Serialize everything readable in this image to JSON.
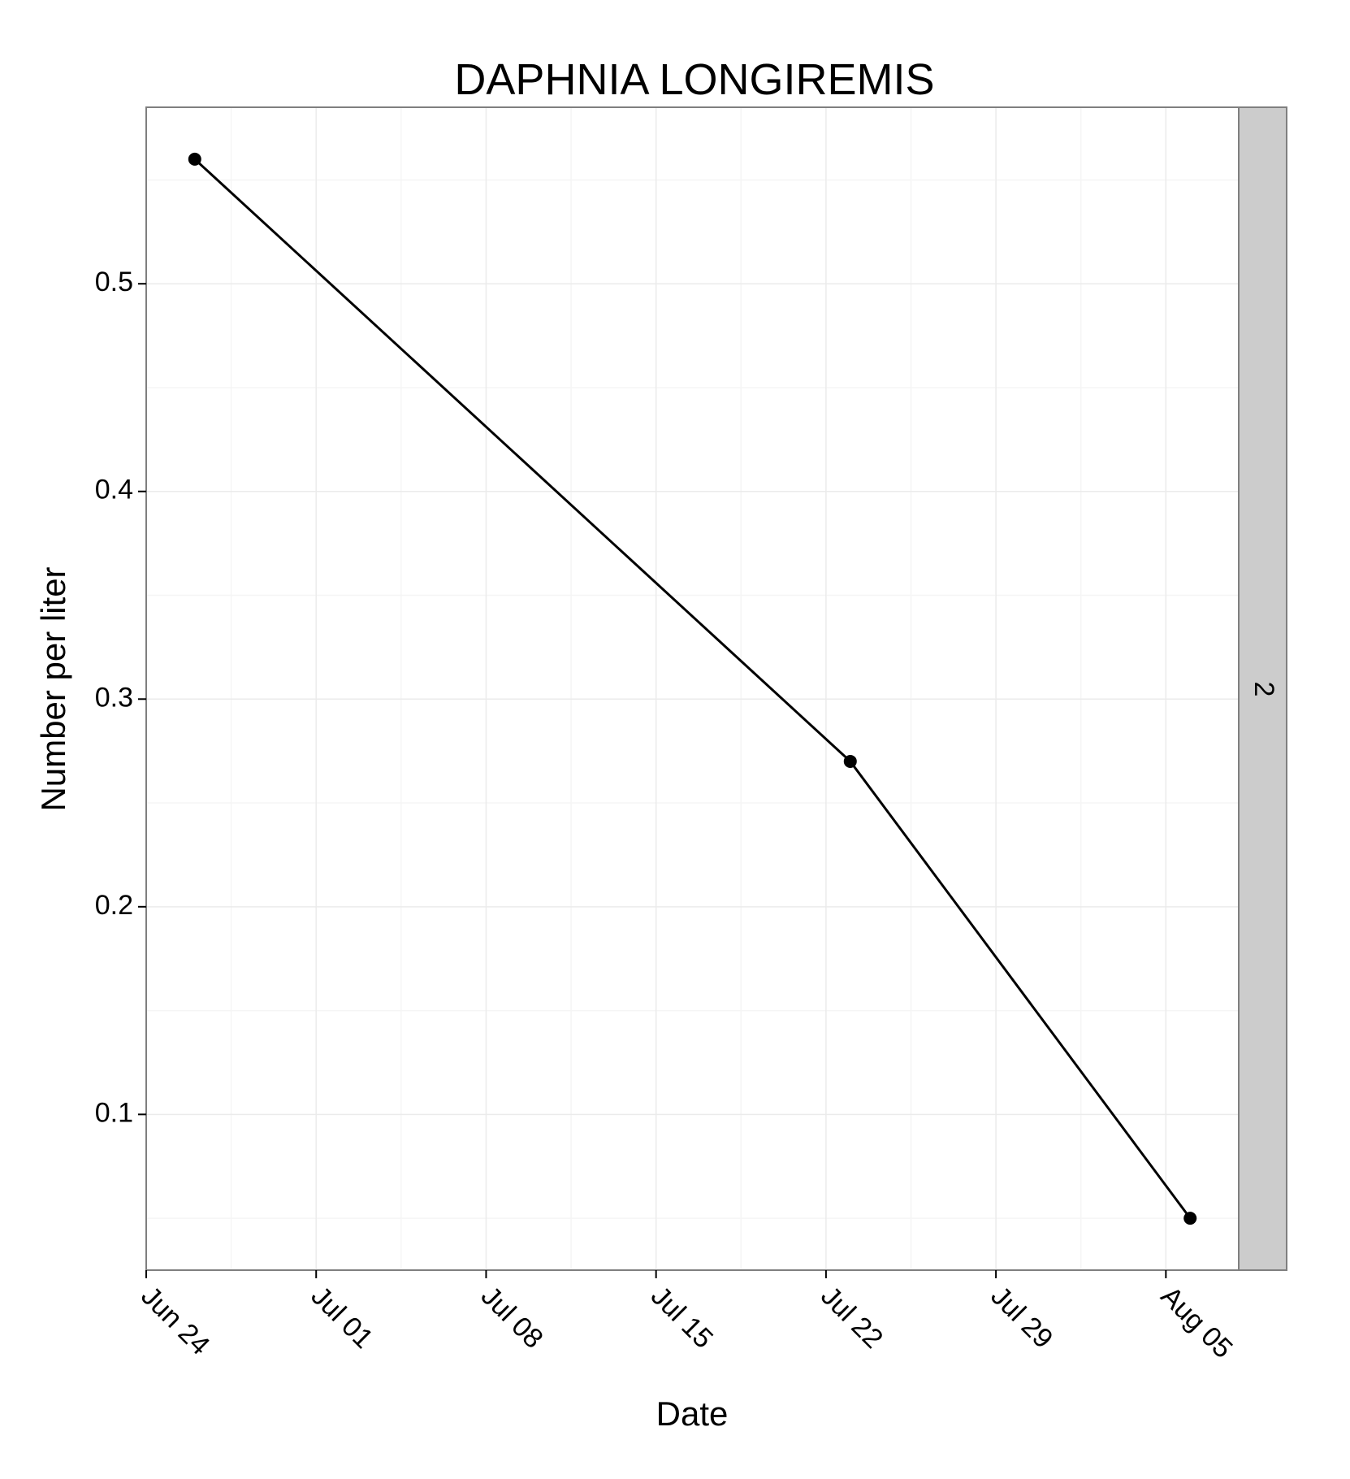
{
  "chart_data": {
    "type": "line",
    "title": "DAPHNIA LONGIREMIS",
    "xlabel": "Date",
    "ylabel": "Number per liter",
    "facet_label": "2",
    "x_ticks": [
      "Jun 24",
      "Jul 01",
      "Jul 08",
      "Jul 15",
      "Jul 22",
      "Jul 29",
      "Aug 05"
    ],
    "y_ticks": [
      "0.1",
      "0.2",
      "0.3",
      "0.4",
      "0.5"
    ],
    "xlim": [
      "Jun 24",
      "Aug 08"
    ],
    "ylim": [
      0.025,
      0.585
    ],
    "grid": true,
    "series": [
      {
        "points": [
          {
            "x": "Jun 26",
            "y": 0.56
          },
          {
            "x": "Jul 23",
            "y": 0.27
          },
          {
            "x": "Aug 06",
            "y": 0.05
          }
        ]
      }
    ],
    "colors": {
      "panel_border": "#7f7f7f",
      "grid_major": "#ebebeb",
      "grid_minor": "#f5f5f5",
      "strip_fill": "#cccccc",
      "line": "#000000",
      "point": "#000000"
    }
  }
}
